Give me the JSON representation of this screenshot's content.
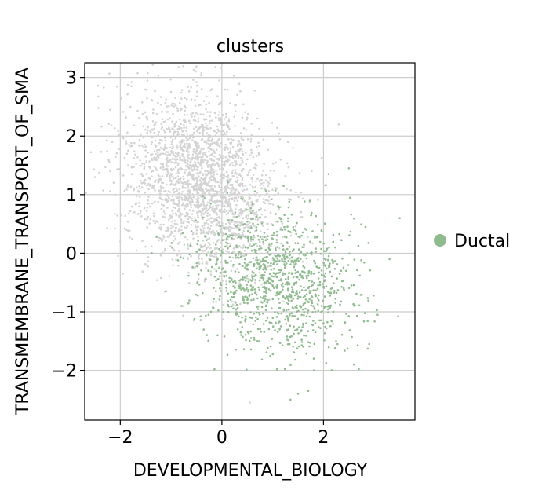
{
  "chart_data": {
    "type": "scatter",
    "title": "clusters",
    "xlabel": "DEVELOPMENTAL_BIOLOGY",
    "ylabel": "TRANSMEMBRANE_TRANSPORT_OF_SMA",
    "xlim": [
      -2.7,
      3.8
    ],
    "ylim": [
      -2.85,
      3.25
    ],
    "xticks": [
      -2,
      0,
      2
    ],
    "yticks": [
      -2,
      -1,
      0,
      1,
      2,
      3
    ],
    "xtick_labels": [
      "−2",
      "0",
      "2"
    ],
    "ytick_labels": [
      "−2",
      "−1",
      "0",
      "1",
      "2",
      "3"
    ],
    "grid": true,
    "legend_position": "right",
    "series": [
      {
        "name": "",
        "color": "#d3d3d3",
        "cloud": {
          "count": 2200,
          "center": [
            -0.4,
            1.2
          ],
          "spread": [
            0.75,
            0.75
          ],
          "correlation": -0.25
        },
        "points": [
          [
            -2.2,
            2.45
          ],
          [
            -2.5,
            1.3
          ],
          [
            -2.0,
            0.2
          ],
          [
            -1.95,
            -0.35
          ],
          [
            -0.05,
            2.95
          ],
          [
            -2.1,
            1.0
          ],
          [
            -1.5,
            -0.2
          ],
          [
            0.7,
            2.3
          ],
          [
            2.3,
            2.2
          ],
          [
            1.3,
            1.9
          ],
          [
            -1.8,
            2.5
          ],
          [
            -0.2,
            2.8
          ],
          [
            0.55,
            -2.55
          ]
        ]
      },
      {
        "name": "Ductal",
        "color": "#8fbc8f",
        "cloud": {
          "count": 1100,
          "center": [
            1.1,
            -0.45
          ],
          "spread": [
            0.75,
            0.6
          ],
          "correlation": -0.2
        },
        "points": [
          [
            2.5,
            1.45
          ],
          [
            3.5,
            0.6
          ],
          [
            3.3,
            -0.1
          ],
          [
            2.9,
            -1.55
          ],
          [
            1.7,
            -2.35
          ],
          [
            1.35,
            -2.5
          ],
          [
            2.1,
            1.35
          ],
          [
            1.5,
            -2.4
          ],
          [
            0.7,
            -1.5
          ],
          [
            2.6,
            -1.9
          ]
        ]
      }
    ]
  }
}
